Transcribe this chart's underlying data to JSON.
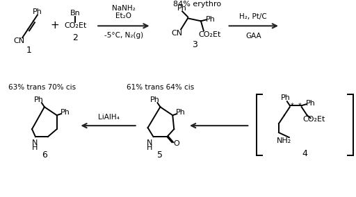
{
  "bg": "#ffffff",
  "fg": "#000000",
  "lw": 1.4,
  "note_top": "84% erythro",
  "arrow1_l1": "NaNH₂",
  "arrow1_l2": "Et₂O",
  "arrow1_l3": "-5°C, N₂(g)",
  "arrow2_l1": "H₂, Pt/C",
  "arrow2_l2": "GAA",
  "arrow3_lbl": "LiAlH₄",
  "note6": "63% trans 70% cis",
  "note5": "61% trans 64% cis",
  "Ph": "Ph",
  "Bn": "Bn",
  "CN": "CN",
  "CO2Et": "CO₂Et",
  "NH": "N\nH",
  "NH2": "NH₂",
  "O": "O",
  "plus": "+",
  "lbl1": "1",
  "lbl2": "2",
  "lbl3": "3",
  "lbl4": "4",
  "lbl5": "5",
  "lbl6": "6",
  "fs": 8,
  "fs_lbl": 9,
  "fs_plus": 11,
  "fs_reagent": 7.5
}
